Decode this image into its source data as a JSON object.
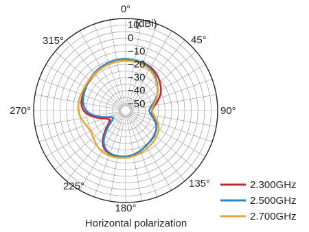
{
  "chart_data": {
    "type": "polar",
    "title": "",
    "caption": "Horizontal polarization",
    "radial_unit": "(dBi)",
    "radial_ticks": [
      10,
      0,
      -10,
      -20,
      -30,
      -40,
      -50
    ],
    "radial_range": [
      -60,
      10
    ],
    "angle_labels": [
      "0°",
      "45°",
      "90°",
      "135°",
      "180°",
      "225°",
      "270°",
      "315°"
    ],
    "angles_deg": [
      0,
      30,
      60,
      90,
      120,
      150,
      180,
      210,
      240,
      270,
      300,
      330,
      360
    ],
    "series": [
      {
        "name": "2.300GHz",
        "color": "#c8262b",
        "values": [
          -22,
          -22,
          -29,
          -40,
          -33,
          -29,
          -25,
          -27,
          -46,
          -28,
          -25,
          -23,
          -22
        ]
      },
      {
        "name": "2.500GHz",
        "color": "#2a84c6",
        "values": [
          -21,
          -23,
          -32,
          -42,
          -33,
          -29,
          -25,
          -28,
          -49,
          -30,
          -25,
          -22,
          -21
        ]
      },
      {
        "name": "2.700GHz",
        "color": "#e6a83a",
        "values": [
          -22,
          -24,
          -32,
          -40,
          -31,
          -27,
          -24,
          -24,
          -29,
          -24,
          -24,
          -23,
          -22
        ]
      }
    ],
    "grid": true,
    "legend": "bottom-right"
  }
}
